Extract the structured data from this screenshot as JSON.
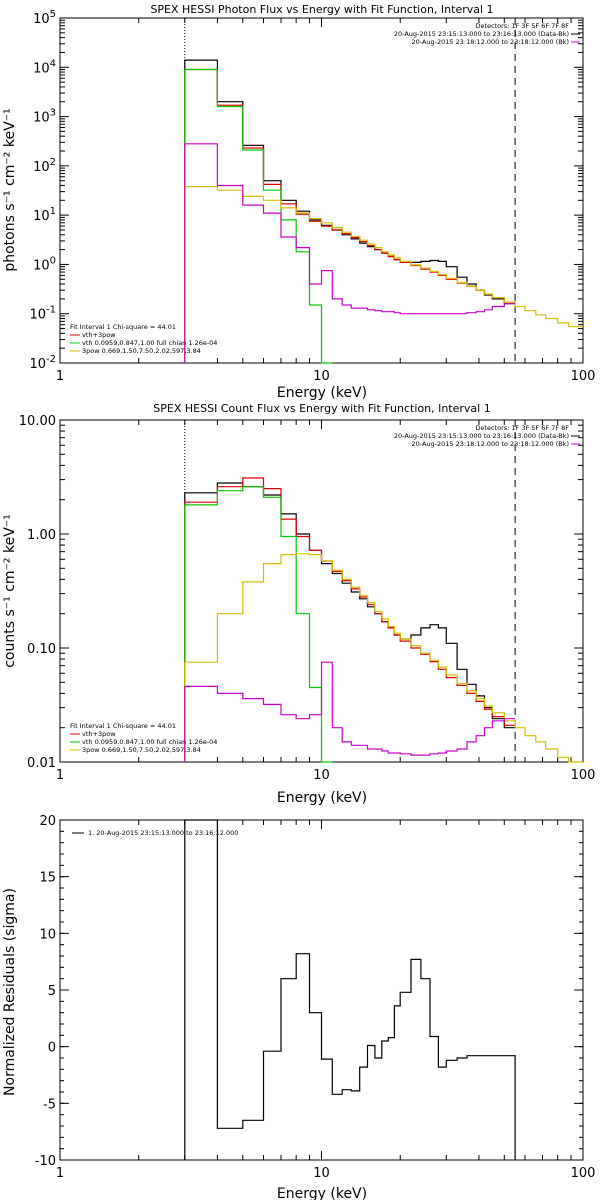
{
  "chart_data": [
    {
      "type": "line",
      "title": "SPEX HESSI Photon Flux vs Energy with Fit Function, Interval 1",
      "xlabel": "Energy (keV)",
      "ylabel": "photons s⁻¹ cm⁻² keV⁻¹",
      "xscale": "log",
      "yscale": "log",
      "xlim": [
        1,
        100
      ],
      "ylim": [
        0.01,
        100000
      ],
      "xticks": [
        {
          "v": 1,
          "label": "1"
        },
        {
          "v": 10,
          "label": "10"
        },
        {
          "v": 100,
          "label": "100"
        }
      ],
      "yticks": [
        {
          "v": 0.01,
          "base": "10",
          "exp": "-2"
        },
        {
          "v": 0.1,
          "base": "10",
          "exp": "-1"
        },
        {
          "v": 1,
          "base": "10",
          "exp": "0"
        },
        {
          "v": 10,
          "base": "10",
          "exp": "1"
        },
        {
          "v": 100,
          "base": "10",
          "exp": "2"
        },
        {
          "v": 1000,
          "base": "10",
          "exp": "3"
        },
        {
          "v": 10000,
          "base": "10",
          "exp": "4"
        },
        {
          "v": 100000,
          "base": "10",
          "exp": "5"
        }
      ],
      "vlines": [
        {
          "x": 3,
          "style": "dotted"
        },
        {
          "x": 55,
          "style": "dashed"
        }
      ],
      "legend_top": [
        "Detectors: 1F 3F 5F 6F 7F 8F",
        "20-Aug-2015 23:15:13.000 to 23:16:13.000 (Data-Bk)",
        "20-Aug-2015 23:18:12.000 to 23:18:12.000 (Bk)"
      ],
      "legend_bottom": [
        "Fit Interval 1    Chi-square = 44.01",
        "vth+3pow",
        "vth 0.0959,0.847,1.00  full chian 1.26e-04",
        "3pow 0.669,1.50,7.50,2.02,597,3.84"
      ],
      "series": [
        {
          "color": "#000000",
          "edges": [
            3,
            4,
            5,
            6,
            7,
            8,
            9,
            10,
            11,
            12,
            13,
            14,
            15,
            16,
            17,
            18,
            19,
            20,
            22,
            24,
            26,
            28,
            30,
            33,
            36,
            39,
            42,
            45,
            50,
            55
          ],
          "values": [
            14000,
            2000,
            260,
            50,
            20,
            12,
            8,
            6.2,
            5,
            4,
            3.3,
            2.7,
            2.3,
            2,
            1.7,
            1.45,
            1.25,
            1.12,
            1.1,
            1.15,
            1.2,
            1.15,
            0.9,
            0.55,
            0.4,
            0.3,
            0.24,
            0.2,
            0.16
          ]
        },
        {
          "color": "#e00000",
          "edges": [
            3,
            4,
            5,
            6,
            7,
            8,
            9,
            10,
            11,
            12,
            13,
            14,
            15,
            16,
            17,
            18,
            19,
            20,
            22,
            24,
            26,
            28,
            30,
            33,
            36,
            39,
            42,
            45,
            50,
            55
          ],
          "values": [
            9000,
            1700,
            230,
            42,
            17,
            10.5,
            7.5,
            6,
            5,
            4.2,
            3.5,
            2.9,
            2.4,
            2,
            1.7,
            1.45,
            1.25,
            1.1,
            0.95,
            0.8,
            0.7,
            0.6,
            0.5,
            0.42,
            0.36,
            0.3,
            0.25,
            0.21,
            0.17
          ]
        },
        {
          "color": "#00cc00",
          "edges": [
            3,
            4,
            5,
            6,
            7,
            8,
            9,
            10,
            11
          ],
          "values": [
            9000,
            1600,
            210,
            32,
            8,
            1.8,
            0.15,
            0.01
          ]
        },
        {
          "color": "#d4c000",
          "edges": [
            3,
            4,
            5,
            6,
            7,
            8,
            9,
            10,
            11,
            12,
            13,
            14,
            15,
            16,
            17,
            18,
            19,
            20,
            22,
            24,
            26,
            28,
            30,
            33,
            36,
            39,
            42,
            45,
            50,
            55,
            60,
            66,
            72,
            80,
            88,
            100
          ],
          "values": [
            38,
            32,
            24,
            20,
            14,
            11,
            8.5,
            7,
            5.6,
            4.5,
            3.7,
            3.1,
            2.6,
            2.2,
            1.8,
            1.55,
            1.35,
            1.15,
            0.98,
            0.84,
            0.72,
            0.62,
            0.52,
            0.43,
            0.36,
            0.3,
            0.25,
            0.21,
            0.17,
            0.14,
            0.115,
            0.095,
            0.08,
            0.065,
            0.055
          ]
        },
        {
          "color": "#cc00cc",
          "edges": [
            3,
            4,
            5,
            6,
            7,
            8,
            9,
            10,
            11,
            12,
            13,
            14,
            15,
            16,
            17,
            18,
            19,
            20,
            22,
            24,
            26,
            28,
            30,
            33,
            36,
            39,
            42,
            45,
            50,
            55
          ],
          "values": [
            280,
            40,
            16,
            11,
            3.6,
            2.2,
            0.4,
            0.75,
            0.2,
            0.15,
            0.13,
            0.13,
            0.12,
            0.115,
            0.11,
            0.11,
            0.105,
            0.1,
            0.1,
            0.1,
            0.1,
            0.1,
            0.1,
            0.1,
            0.105,
            0.11,
            0.12,
            0.14,
            0.16
          ]
        }
      ]
    },
    {
      "type": "line",
      "title": "SPEX HESSI Count Flux vs Energy with Fit Function, Interval 1",
      "xlabel": "Energy (keV)",
      "ylabel": "counts s⁻¹ cm⁻² keV⁻¹",
      "xscale": "log",
      "yscale": "log",
      "xlim": [
        1,
        100
      ],
      "ylim": [
        0.01,
        10
      ],
      "xticks": [
        {
          "v": 1,
          "label": "1"
        },
        {
          "v": 10,
          "label": "10"
        },
        {
          "v": 100,
          "label": "100"
        }
      ],
      "yticks": [
        {
          "v": 0.01,
          "label": "0.01"
        },
        {
          "v": 0.1,
          "label": "0.10"
        },
        {
          "v": 1,
          "label": "1.00"
        },
        {
          "v": 10,
          "label": "10.00"
        }
      ],
      "vlines": [
        {
          "x": 3,
          "style": "dotted"
        },
        {
          "x": 55,
          "style": "dashed"
        }
      ],
      "legend_top": [
        "Detectors: 1F 3F 5F 6F 7F 8F",
        "20-Aug-2015 23:15:13.000 to 23:16:13.000 (Data-Bk)",
        "20-Aug-2015 23:18:12.000 to 23:18:12.000 (Bk)"
      ],
      "legend_bottom": [
        "Fit Interval 1    Chi-square = 44.01",
        "vth+3pow",
        "vth 0.0959,0.847,1.00  full chian 1.26e-04",
        "3pow 0.669,1.50,7.50,2.02,597,3.84"
      ],
      "series": [
        {
          "color": "#000000",
          "edges": [
            3,
            4,
            5,
            6,
            7,
            8,
            9,
            10,
            11,
            12,
            13,
            14,
            15,
            16,
            17,
            18,
            19,
            20,
            22,
            24,
            26,
            28,
            30,
            33,
            36,
            39,
            42,
            45,
            50,
            55
          ],
          "values": [
            2.3,
            2.8,
            2.6,
            2.2,
            1.5,
            1.0,
            0.72,
            0.55,
            0.45,
            0.37,
            0.31,
            0.27,
            0.23,
            0.2,
            0.17,
            0.15,
            0.13,
            0.12,
            0.13,
            0.15,
            0.16,
            0.15,
            0.11,
            0.065,
            0.048,
            0.038,
            0.03,
            0.024,
            0.02
          ]
        },
        {
          "color": "#e00000",
          "edges": [
            3,
            4,
            5,
            6,
            7,
            8,
            9,
            10,
            11,
            12,
            13,
            14,
            15,
            16,
            17,
            18,
            19,
            20,
            22,
            24,
            26,
            28,
            30,
            33,
            36,
            39,
            42,
            45,
            50,
            55
          ],
          "values": [
            1.9,
            2.6,
            3.1,
            2.5,
            1.35,
            0.95,
            0.72,
            0.58,
            0.47,
            0.39,
            0.33,
            0.28,
            0.24,
            0.2,
            0.17,
            0.15,
            0.13,
            0.115,
            0.1,
            0.088,
            0.076,
            0.065,
            0.055,
            0.047,
            0.04,
            0.034,
            0.029,
            0.025,
            0.021
          ]
        },
        {
          "color": "#00cc00",
          "edges": [
            3,
            4,
            5,
            6,
            7,
            8,
            9,
            10,
            11
          ],
          "values": [
            1.8,
            2.4,
            2.6,
            2.1,
            0.95,
            0.2,
            0.045,
            0.01
          ]
        },
        {
          "color": "#d4c000",
          "edges": [
            3,
            4,
            5,
            6,
            7,
            8,
            9,
            10,
            11,
            12,
            13,
            14,
            15,
            16,
            17,
            18,
            19,
            20,
            22,
            24,
            26,
            28,
            30,
            33,
            36,
            39,
            42,
            45,
            50,
            55,
            60,
            66,
            72,
            80,
            88,
            100
          ],
          "values": [
            0.075,
            0.2,
            0.38,
            0.55,
            0.66,
            0.67,
            0.66,
            0.58,
            0.48,
            0.4,
            0.34,
            0.29,
            0.25,
            0.21,
            0.18,
            0.155,
            0.135,
            0.12,
            0.105,
            0.09,
            0.078,
            0.068,
            0.058,
            0.049,
            0.042,
            0.036,
            0.031,
            0.027,
            0.023,
            0.02,
            0.017,
            0.015,
            0.013,
            0.011,
            0.01
          ]
        },
        {
          "color": "#cc00cc",
          "edges": [
            3,
            4,
            5,
            6,
            7,
            8,
            9,
            10,
            11,
            12,
            13,
            14,
            15,
            16,
            17,
            18,
            19,
            20,
            22,
            24,
            26,
            28,
            30,
            33,
            36,
            39,
            42,
            45,
            50,
            55
          ],
          "values": [
            0.046,
            0.04,
            0.036,
            0.032,
            0.026,
            0.024,
            0.026,
            0.075,
            0.02,
            0.015,
            0.014,
            0.014,
            0.013,
            0.013,
            0.0125,
            0.012,
            0.012,
            0.0118,
            0.0115,
            0.0115,
            0.0118,
            0.012,
            0.0125,
            0.013,
            0.015,
            0.017,
            0.02,
            0.023,
            0.024
          ]
        }
      ]
    },
    {
      "type": "line",
      "title": "",
      "xlabel": "Energy (keV)",
      "ylabel": "Normalized Residuals (sigma)",
      "xscale": "log",
      "yscale": "linear",
      "xlim": [
        1,
        100
      ],
      "ylim": [
        -10,
        20
      ],
      "xticks": [
        {
          "v": 1,
          "label": "1"
        },
        {
          "v": 10,
          "label": "10"
        },
        {
          "v": 100,
          "label": "100"
        }
      ],
      "yticks": [
        {
          "v": -10,
          "label": "-10"
        },
        {
          "v": -5,
          "label": "-5"
        },
        {
          "v": 0,
          "label": "0"
        },
        {
          "v": 5,
          "label": "5"
        },
        {
          "v": 10,
          "label": "10"
        },
        {
          "v": 15,
          "label": "15"
        },
        {
          "v": 20,
          "label": "20"
        }
      ],
      "legend_top_left": "1. 20-Aug-2015 23:15:13.000 to 23:16:12.000",
      "series": [
        {
          "color": "#000000",
          "edges": [
            3,
            4,
            5,
            6,
            7,
            8,
            9,
            10,
            11,
            12,
            13,
            14,
            15,
            16,
            17,
            18,
            19,
            20,
            22,
            24,
            26,
            28,
            30,
            33,
            36,
            39,
            42,
            45,
            50,
            55
          ],
          "values": [
            20,
            -7.2,
            -6.5,
            -0.4,
            6,
            8.2,
            3,
            -1.1,
            -4.2,
            -3.8,
            -3.9,
            -1.8,
            0.1,
            -1.0,
            0.5,
            0.8,
            3.6,
            4.8,
            7.7,
            6.0,
            0.9,
            -1.8,
            -1.2,
            -1.0,
            -0.8,
            -0.8,
            -0.8,
            -0.8,
            -0.8
          ],
          "drop_to_bottom": true
        }
      ]
    }
  ]
}
